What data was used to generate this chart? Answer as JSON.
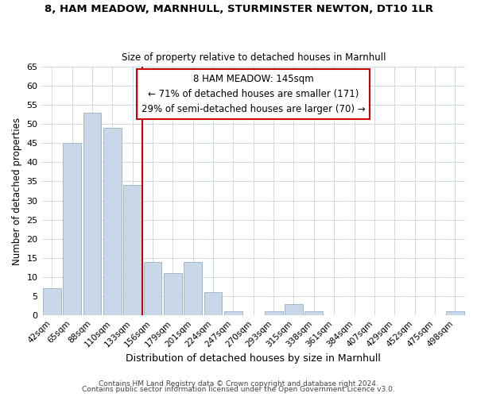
{
  "title": "8, HAM MEADOW, MARNHULL, STURMINSTER NEWTON, DT10 1LR",
  "subtitle": "Size of property relative to detached houses in Marnhull",
  "xlabel": "Distribution of detached houses by size in Marnhull",
  "ylabel": "Number of detached properties",
  "bar_color": "#c8d8e8",
  "bar_edge_color": "#a0b8cc",
  "categories": [
    "42sqm",
    "65sqm",
    "88sqm",
    "110sqm",
    "133sqm",
    "156sqm",
    "179sqm",
    "201sqm",
    "224sqm",
    "247sqm",
    "270sqm",
    "293sqm",
    "315sqm",
    "338sqm",
    "361sqm",
    "384sqm",
    "407sqm",
    "429sqm",
    "452sqm",
    "475sqm",
    "498sqm"
  ],
  "values": [
    7,
    45,
    53,
    49,
    34,
    14,
    11,
    14,
    6,
    1,
    0,
    1,
    3,
    1,
    0,
    0,
    0,
    0,
    0,
    0,
    1
  ],
  "vline_color": "#cc0000",
  "ann_line1": "8 HAM MEADOW: 145sqm",
  "ann_line2": "← 71% of detached houses are smaller (171)",
  "ann_line3": "29% of semi-detached houses are larger (70) →",
  "annotation_box_color": "#ffffff",
  "annotation_box_edge": "#cc0000",
  "ylim": [
    0,
    65
  ],
  "yticks": [
    0,
    5,
    10,
    15,
    20,
    25,
    30,
    35,
    40,
    45,
    50,
    55,
    60,
    65
  ],
  "footer1": "Contains HM Land Registry data © Crown copyright and database right 2024.",
  "footer2": "Contains public sector information licensed under the Open Government Licence v3.0.",
  "background_color": "#ffffff",
  "grid_color": "#c8d4dc"
}
